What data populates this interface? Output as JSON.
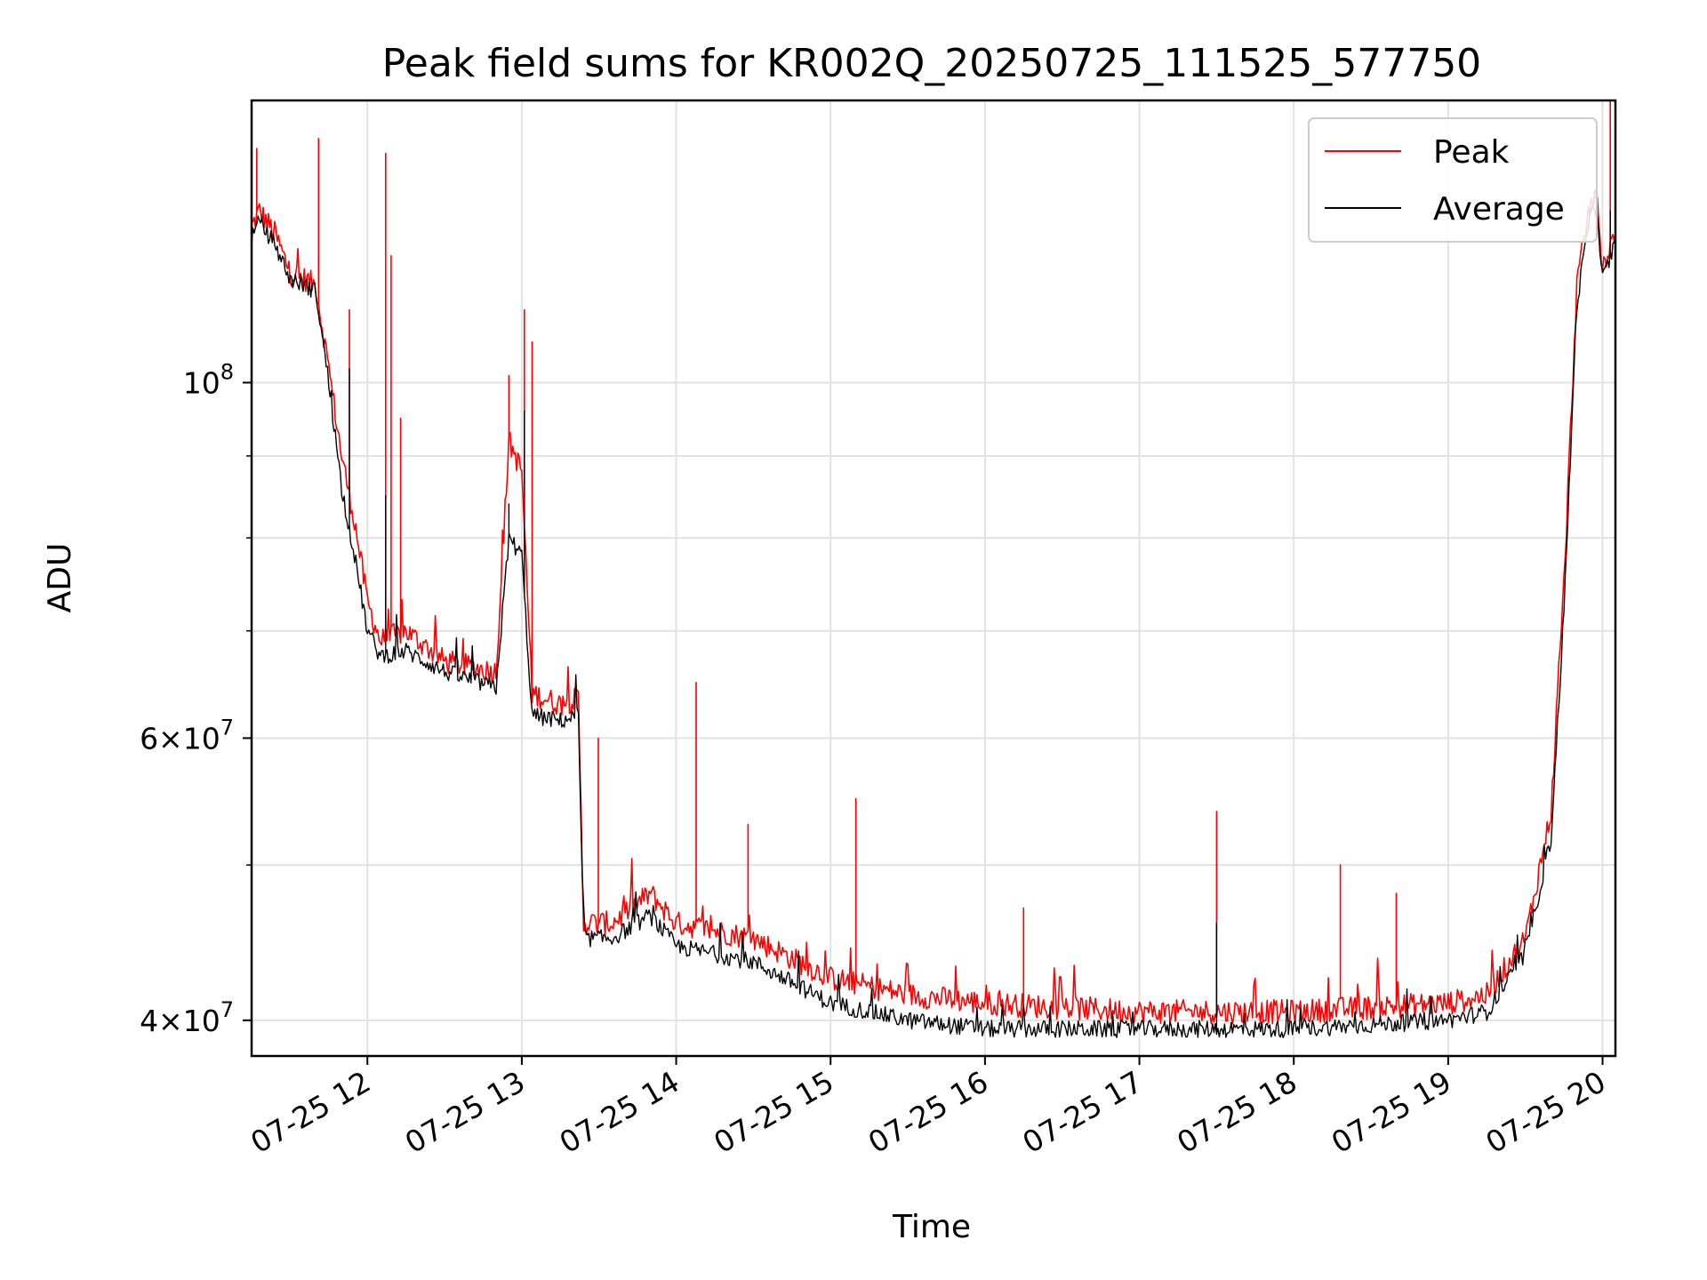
{
  "chart_data": {
    "type": "line",
    "title": "Peak field sums for KR002Q_20250725_111525_577750",
    "xlabel": "Time",
    "ylabel": "ADU",
    "y_scale": "log",
    "ylim": [
      38000000,
      150000000
    ],
    "xlim": [
      "2025-07-25 11:15",
      "2025-07-25 20:05"
    ],
    "grid": true,
    "legend_position": "top-right",
    "x_tick_labels": [
      "07-25 12",
      "07-25 13",
      "07-25 14",
      "07-25 15",
      "07-25 16",
      "07-25 17",
      "07-25 18",
      "07-25 19",
      "07-25 20"
    ],
    "x_ticks": [
      "2025-07-25 12:00",
      "2025-07-25 13:00",
      "2025-07-25 14:00",
      "2025-07-25 15:00",
      "2025-07-25 16:00",
      "2025-07-25 17:00",
      "2025-07-25 18:00",
      "2025-07-25 19:00",
      "2025-07-25 20:00"
    ],
    "y_major_ticks": [
      {
        "value": 100000000,
        "mantissa": "",
        "exponent": "8"
      },
      {
        "value": 60000000,
        "mantissa": "6",
        "exponent": "7"
      },
      {
        "value": 40000000,
        "mantissa": "4",
        "exponent": "7"
      }
    ],
    "y_minor_ticks": [
      50000000,
      70000000,
      80000000,
      90000000
    ],
    "series": [
      {
        "name": "Peak",
        "color": "#ff0000",
        "points": [
          [
            "2025-07-25 11:15",
            125000000
          ],
          [
            "2025-07-25 11:18",
            128000000
          ],
          [
            "2025-07-25 11:24",
            124000000
          ],
          [
            "2025-07-25 11:30",
            117000000
          ],
          [
            "2025-07-25 11:36",
            116000000
          ],
          [
            "2025-07-25 11:40",
            115000000
          ],
          [
            "2025-07-25 11:45",
            102000000
          ],
          [
            "2025-07-25 11:50",
            90000000
          ],
          [
            "2025-07-25 11:55",
            82000000
          ],
          [
            "2025-07-25 12:00",
            73000000
          ],
          [
            "2025-07-25 12:05",
            69000000
          ],
          [
            "2025-07-25 12:15",
            70000000
          ],
          [
            "2025-07-25 12:30",
            67000000
          ],
          [
            "2025-07-25 12:50",
            66000000
          ],
          [
            "2025-07-25 12:55",
            92000000
          ],
          [
            "2025-07-25 13:00",
            88000000
          ],
          [
            "2025-07-25 13:04",
            64000000
          ],
          [
            "2025-07-25 13:15",
            63000000
          ],
          [
            "2025-07-25 13:22",
            63500000
          ],
          [
            "2025-07-25 13:24",
            46000000
          ],
          [
            "2025-07-25 13:35",
            46000000
          ],
          [
            "2025-07-25 13:50",
            48000000
          ],
          [
            "2025-07-25 14:00",
            46000000
          ],
          [
            "2025-07-25 14:30",
            45000000
          ],
          [
            "2025-07-25 15:00",
            42500000
          ],
          [
            "2025-07-25 15:30",
            41500000
          ],
          [
            "2025-07-25 16:00",
            41000000
          ],
          [
            "2025-07-25 17:00",
            40500000
          ],
          [
            "2025-07-25 18:00",
            40500000
          ],
          [
            "2025-07-25 19:00",
            41000000
          ],
          [
            "2025-07-25 19:15",
            41500000
          ],
          [
            "2025-07-25 19:30",
            45000000
          ],
          [
            "2025-07-25 19:40",
            54000000
          ],
          [
            "2025-07-25 19:45",
            75000000
          ],
          [
            "2025-07-25 19:50",
            115000000
          ],
          [
            "2025-07-25 19:55",
            129000000
          ],
          [
            "2025-07-25 19:58",
            130000000
          ],
          [
            "2025-07-25 20:00",
            118000000
          ],
          [
            "2025-07-25 20:05",
            124000000
          ]
        ],
        "spikes": [
          [
            "2025-07-25 11:17",
            140000000
          ],
          [
            "2025-07-25 11:41",
            142000000
          ],
          [
            "2025-07-25 11:53",
            111000000
          ],
          [
            "2025-07-25 12:07",
            139000000
          ],
          [
            "2025-07-25 12:09",
            120000000
          ],
          [
            "2025-07-25 12:13",
            95000000
          ],
          [
            "2025-07-25 12:55",
            101000000
          ],
          [
            "2025-07-25 13:01",
            111000000
          ],
          [
            "2025-07-25 13:04",
            106000000
          ],
          [
            "2025-07-25 13:30",
            60000000
          ],
          [
            "2025-07-25 14:08",
            65000000
          ],
          [
            "2025-07-25 14:28",
            53000000
          ],
          [
            "2025-07-25 15:10",
            55000000
          ],
          [
            "2025-07-25 16:15",
            47000000
          ],
          [
            "2025-07-25 17:30",
            54000000
          ],
          [
            "2025-07-25 18:18",
            50000000
          ],
          [
            "2025-07-25 18:40",
            48000000
          ],
          [
            "2025-07-25 20:03",
            150000000
          ]
        ]
      },
      {
        "name": "Average",
        "color": "#000000",
        "points": [
          [
            "2025-07-25 11:15",
            123000000
          ],
          [
            "2025-07-25 11:18",
            126000000
          ],
          [
            "2025-07-25 11:24",
            122000000
          ],
          [
            "2025-07-25 11:30",
            116000000
          ],
          [
            "2025-07-25 11:36",
            115000000
          ],
          [
            "2025-07-25 11:40",
            114000000
          ],
          [
            "2025-07-25 11:45",
            100000000
          ],
          [
            "2025-07-25 11:50",
            86000000
          ],
          [
            "2025-07-25 11:55",
            78000000
          ],
          [
            "2025-07-25 12:00",
            70000000
          ],
          [
            "2025-07-25 12:05",
            67500000
          ],
          [
            "2025-07-25 12:15",
            68000000
          ],
          [
            "2025-07-25 12:30",
            66000000
          ],
          [
            "2025-07-25 12:50",
            64500000
          ],
          [
            "2025-07-25 12:55",
            80000000
          ],
          [
            "2025-07-25 13:00",
            78000000
          ],
          [
            "2025-07-25 13:04",
            62000000
          ],
          [
            "2025-07-25 13:15",
            61500000
          ],
          [
            "2025-07-25 13:22",
            62000000
          ],
          [
            "2025-07-25 13:24",
            45000000
          ],
          [
            "2025-07-25 13:35",
            45000000
          ],
          [
            "2025-07-25 13:50",
            46500000
          ],
          [
            "2025-07-25 14:00",
            44500000
          ],
          [
            "2025-07-25 14:30",
            43500000
          ],
          [
            "2025-07-25 15:00",
            41000000
          ],
          [
            "2025-07-25 15:30",
            40000000
          ],
          [
            "2025-07-25 16:00",
            39500000
          ],
          [
            "2025-07-25 17:00",
            39500000
          ],
          [
            "2025-07-25 18:00",
            39500000
          ],
          [
            "2025-07-25 19:00",
            40000000
          ],
          [
            "2025-07-25 19:15",
            40500000
          ],
          [
            "2025-07-25 19:30",
            44000000
          ],
          [
            "2025-07-25 19:40",
            52000000
          ],
          [
            "2025-07-25 19:45",
            72000000
          ],
          [
            "2025-07-25 19:50",
            112000000
          ],
          [
            "2025-07-25 19:55",
            127000000
          ],
          [
            "2025-07-25 19:58",
            128000000
          ],
          [
            "2025-07-25 20:00",
            116000000
          ],
          [
            "2025-07-25 20:05",
            122000000
          ]
        ],
        "spikes": [
          [
            "2025-07-25 11:53",
            102000000
          ],
          [
            "2025-07-25 12:07",
            85000000
          ],
          [
            "2025-07-25 12:55",
            84000000
          ],
          [
            "2025-07-25 13:01",
            96000000
          ],
          [
            "2025-07-25 17:30",
            46000000
          ],
          [
            "2025-07-25 20:03",
            128000000
          ]
        ]
      }
    ]
  }
}
